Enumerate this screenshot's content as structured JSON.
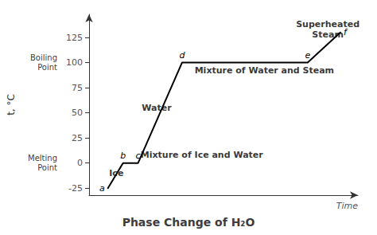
{
  "chart_data": {
    "type": "line",
    "title": "Phase Change of H₂O",
    "xlabel": "Time",
    "ylabel": "t, °C",
    "x": [
      0.55,
      1.15,
      1.75,
      3.5,
      8.5,
      9.8
    ],
    "values": [
      -25,
      0,
      0,
      100,
      100,
      130
    ],
    "point_labels": [
      "a",
      "b",
      "c",
      "d",
      "e",
      "f"
    ],
    "color": "#000000",
    "xlim": [
      -0.2,
      10.5
    ],
    "ylim": [
      -32,
      148
    ],
    "yticks": [
      -25,
      0,
      25,
      50,
      75,
      100,
      125
    ],
    "grid": false,
    "tick_labels": "y",
    "annotations": [
      {
        "text": "Ice",
        "x": 0.6,
        "y": -15
      },
      {
        "text": "Mixture of Ice and Water",
        "x": 1.85,
        "y": 3
      },
      {
        "text": "Water",
        "x": 1.9,
        "y": 50
      },
      {
        "text": "Mixture of Water and Steam",
        "x": 4.0,
        "y": 87
      },
      {
        "text": "Superheated\nSteam",
        "x": 9.3,
        "y": 143
      }
    ],
    "side_labels": [
      {
        "text": "Boiling\nPoint",
        "y": 100
      },
      {
        "text": "Melting\nPoint",
        "y": 0
      }
    ]
  }
}
